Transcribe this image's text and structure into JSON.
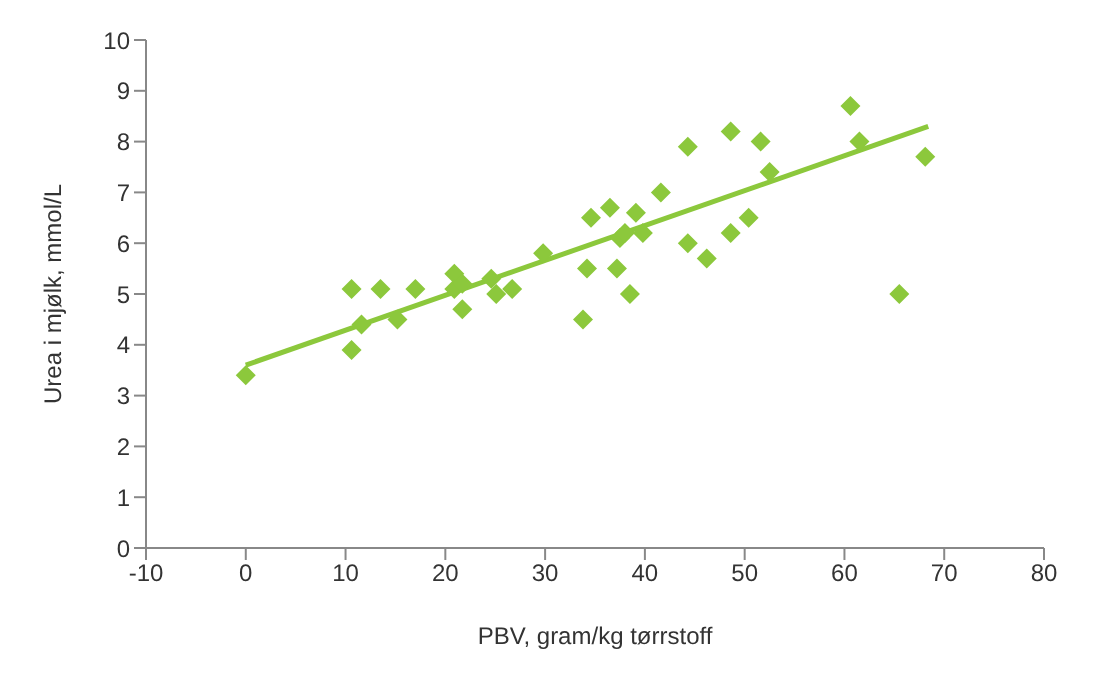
{
  "chart_data": {
    "type": "scatter",
    "xlabel": "PBV, gram/kg tørrstoff",
    "ylabel": "Urea i mjølk, mmol/L",
    "xlim": [
      -10,
      80
    ],
    "xticks": [
      -10,
      0,
      10,
      20,
      30,
      40,
      50,
      60,
      70,
      80
    ],
    "ylim": [
      0,
      10
    ],
    "yticks": [
      0,
      1,
      2,
      3,
      4,
      5,
      6,
      7,
      8,
      9,
      10
    ],
    "grid": false,
    "marker": "diamond",
    "series": [
      {
        "color": "#8cc83c",
        "x": [
          0,
          10.6,
          10.6,
          11.6,
          13.5,
          15.2,
          17.0,
          20.9,
          20.9,
          21.7,
          21.7,
          24.6,
          25.1,
          26.7,
          29.8,
          33.8,
          34.2,
          34.6,
          36.5,
          37.2,
          37.5,
          38.0,
          38.5,
          39.1,
          39.8,
          41.6,
          44.3,
          44.3,
          46.2,
          48.6,
          48.6,
          50.4,
          51.6,
          52.5,
          60.6,
          61.5,
          65.5,
          68.1
        ],
        "values": [
          3.4,
          5.1,
          3.9,
          4.4,
          5.1,
          4.5,
          5.1,
          5.4,
          5.1,
          5.2,
          4.7,
          5.3,
          5.0,
          5.1,
          5.8,
          4.5,
          5.5,
          6.5,
          6.7,
          5.5,
          6.1,
          6.2,
          5.0,
          6.6,
          6.2,
          7.0,
          7.9,
          6.0,
          5.7,
          8.2,
          6.2,
          6.5,
          8.0,
          7.4,
          8.7,
          8.0,
          5.0,
          7.7
        ]
      },
      {
        "type": "line",
        "color": "#8cc83c",
        "marker": "none",
        "x": [
          0,
          68.4
        ],
        "values": [
          3.6,
          8.3
        ]
      }
    ]
  }
}
